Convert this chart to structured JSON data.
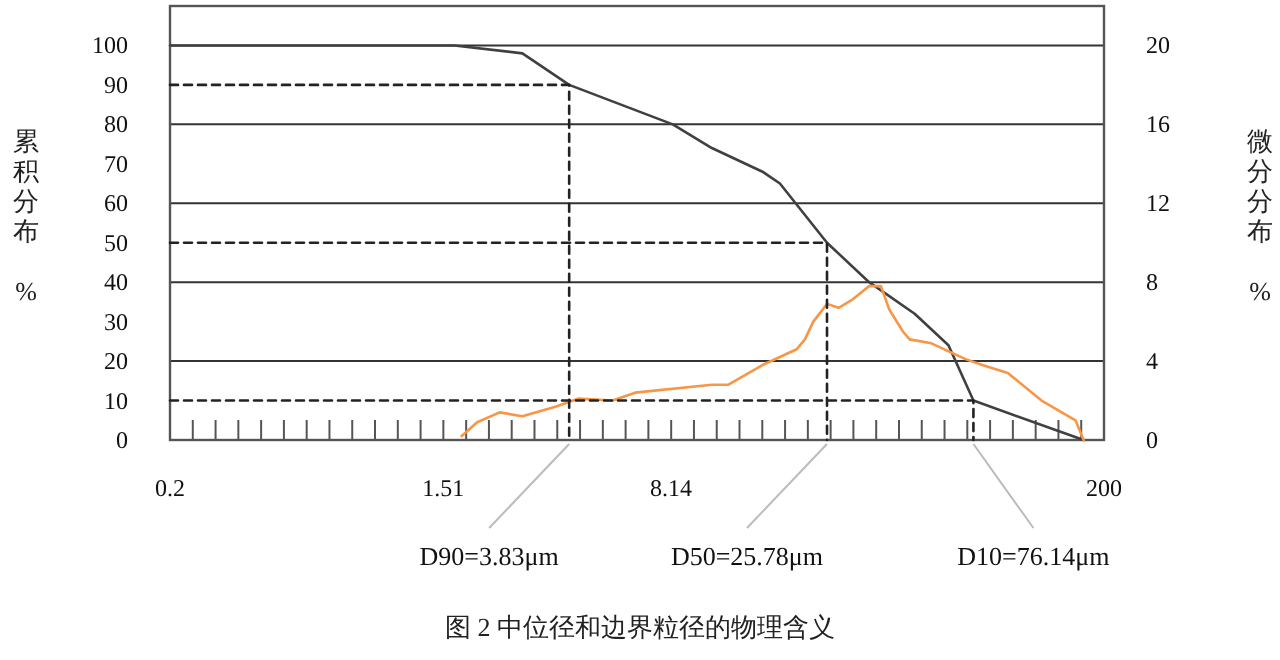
{
  "chart_data": {
    "type": "line",
    "title": "图 2 中位径和边界粒径的物理含义",
    "ylabel": "累积分布 %",
    "y2label": "微分分布 %",
    "log": "x",
    "xlim": [
      0.2,
      200
    ],
    "xticks": [
      0.2,
      1.51,
      8.14,
      200
    ],
    "ylim": [
      0,
      110
    ],
    "yticks": [
      0,
      10,
      20,
      30,
      40,
      50,
      60,
      70,
      80,
      90,
      100
    ],
    "y2lim": [
      0,
      22
    ],
    "y2ticks": [
      0,
      4,
      8,
      12,
      16,
      20
    ],
    "grid": true,
    "series": [
      {
        "color": "#404040",
        "x": [
          0.2,
          1.64,
          2.71,
          3.83,
          8.24,
          11.0,
          16.0,
          18.2,
          25.78,
          35.2,
          49.3,
          63.3,
          76.14,
          172
        ],
        "values": [
          100,
          100,
          98,
          90,
          80,
          74,
          68,
          65,
          50,
          40,
          32,
          24,
          10,
          0
        ]
      },
      {
        "color": "#f79646",
        "axis": "y2",
        "x": [
          1.73,
          1.94,
          2.29,
          2.71,
          3.48,
          4.11,
          5.28,
          6.24,
          11.0,
          12.4,
          16.0,
          20.6,
          21.9,
          23.3,
          25.8,
          28.1,
          31.0,
          35.2,
          38.4,
          40.9,
          45.2,
          47.5,
          55.8,
          71.8,
          81.3,
          98.2,
          126,
          162,
          172
        ],
        "values": [
          0.2,
          0.9,
          1.4,
          1.2,
          1.7,
          2.1,
          2.0,
          2.4,
          2.8,
          2.8,
          3.8,
          4.6,
          5.1,
          6.0,
          6.9,
          6.7,
          7.1,
          7.8,
          7.8,
          6.6,
          5.5,
          5.1,
          4.9,
          4.1,
          3.8,
          3.4,
          2.0,
          1.0,
          0
        ]
      },
      {
        "color": "#222222",
        "line_style": "dashed",
        "x": [
          0.2,
          3.83,
          3.83
        ],
        "values": [
          90,
          90,
          0
        ]
      },
      {
        "color": "#222222",
        "line_style": "dashed",
        "x": [
          0.2,
          25.78,
          25.78
        ],
        "values": [
          50,
          50,
          0
        ]
      },
      {
        "color": "#222222",
        "line_style": "dashed",
        "x": [
          0.2,
          76.14,
          76.14
        ],
        "values": [
          10,
          10,
          0
        ]
      }
    ],
    "annotations": [
      {
        "text": "D90=3.83μm",
        "x": 3.83,
        "y": 0
      },
      {
        "text": "D50=25.78μm",
        "x": 25.78,
        "y": 0
      },
      {
        "text": "D10=76.14μm",
        "x": 76.14,
        "y": 0
      }
    ]
  }
}
